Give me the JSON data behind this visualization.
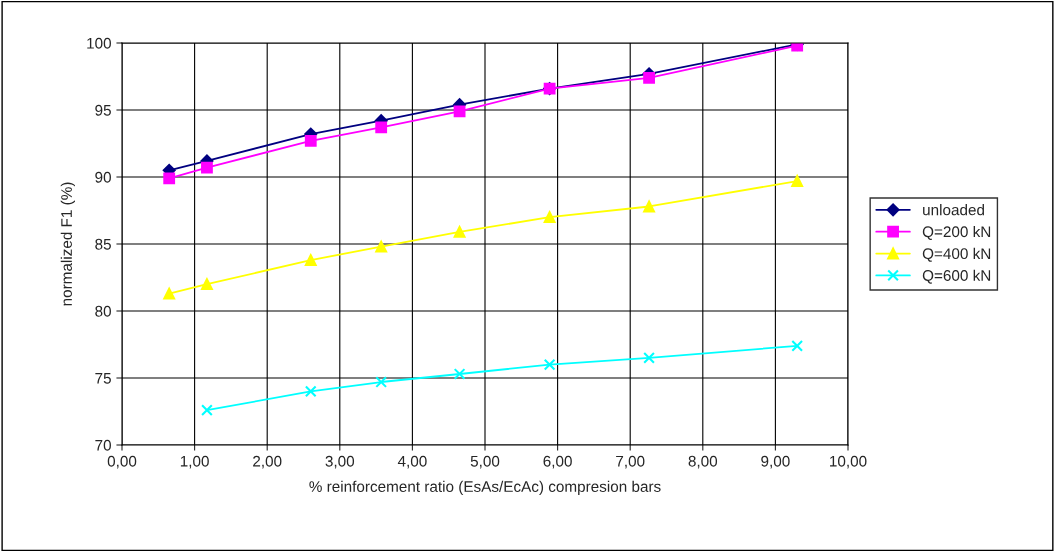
{
  "chart_data": {
    "type": "line",
    "xlabel": "% reinforcement ratio (EsAs/EcAc) compresion bars",
    "ylabel": "normalized F1 (%)",
    "x": [
      0.65,
      1.17,
      2.6,
      3.57,
      4.65,
      5.89,
      7.26,
      9.3
    ],
    "series": [
      {
        "name": "unloaded",
        "color": "#000080",
        "marker": "diamond",
        "values": [
          90.5,
          91.2,
          93.2,
          94.2,
          95.4,
          96.6,
          97.7,
          99.9
        ]
      },
      {
        "name": "Q=200 kN",
        "color": "#ff00ff",
        "marker": "square",
        "values": [
          89.9,
          90.7,
          92.7,
          93.7,
          94.9,
          96.6,
          97.4,
          99.8
        ]
      },
      {
        "name": "Q=400 kN",
        "color": "#ffff00",
        "marker": "triangle",
        "values": [
          81.3,
          82.0,
          83.8,
          84.8,
          85.9,
          87.0,
          87.8,
          89.7
        ]
      },
      {
        "name": "Q=600 kN",
        "color": "#00ffff",
        "marker": "cross",
        "values": [
          null,
          72.6,
          74.0,
          74.7,
          75.3,
          76.0,
          76.5,
          77.4
        ]
      }
    ],
    "xlim": [
      0,
      10
    ],
    "xticks": [
      {
        "value": 0,
        "label": "0,00"
      },
      {
        "value": 1,
        "label": "1,00"
      },
      {
        "value": 2,
        "label": "2,00"
      },
      {
        "value": 3,
        "label": "3,00"
      },
      {
        "value": 4,
        "label": "4,00"
      },
      {
        "value": 5,
        "label": "5,00"
      },
      {
        "value": 6,
        "label": "6,00"
      },
      {
        "value": 7,
        "label": "7,00"
      },
      {
        "value": 8,
        "label": "8,00"
      },
      {
        "value": 9,
        "label": "9,00"
      },
      {
        "value": 10,
        "label": "10,00"
      }
    ],
    "ylim": [
      70,
      100
    ],
    "yticks": [
      70,
      75,
      80,
      85,
      90,
      95,
      100
    ],
    "grid": true,
    "legend": "right",
    "line_style": "solid"
  }
}
